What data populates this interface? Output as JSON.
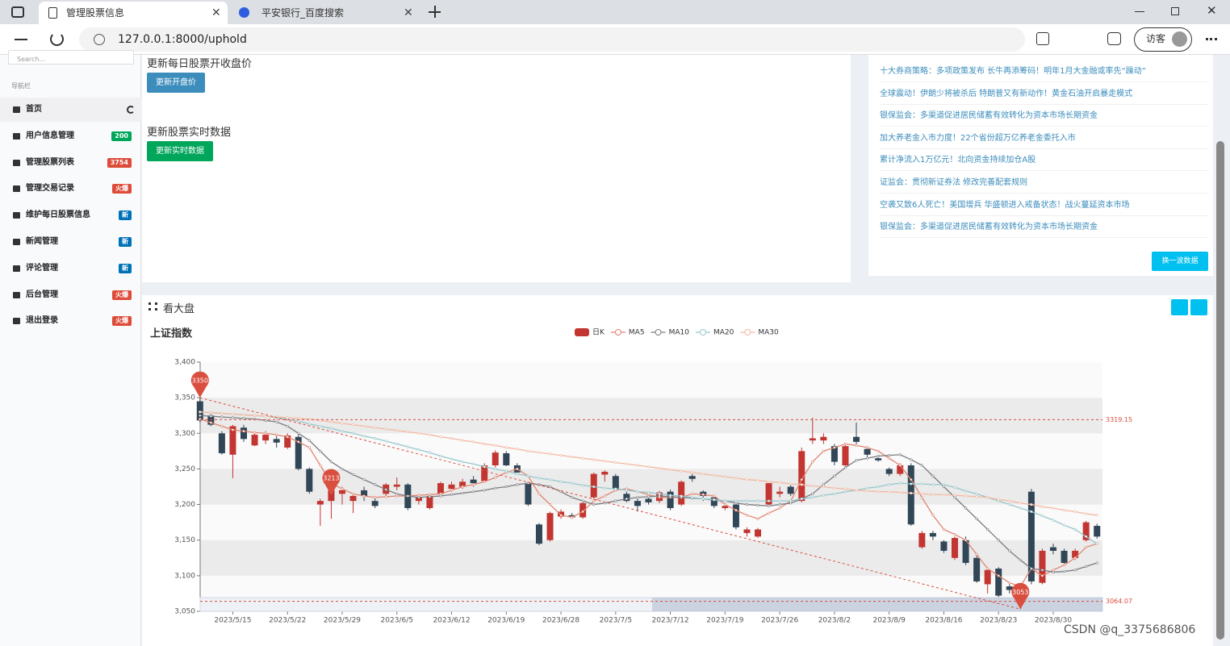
{
  "browser": {
    "tabs": [
      "管理股票信息",
      "平安银行_百度搜索"
    ],
    "url": "127.0.0.1:8000/uphold",
    "profile": "访客"
  },
  "sidebar": {
    "search_placeholder": "Search...",
    "nav_label": "导航栏",
    "items": [
      {
        "label": "首页"
      },
      {
        "label": "用户信息管理",
        "badge": "200",
        "badge_color": "#00a65a"
      },
      {
        "label": "管理股票列表",
        "badge": "3754",
        "badge_color": "#dd4b39"
      },
      {
        "label": "管理交易记录",
        "badge": "火爆",
        "badge_color": "#dd4b39"
      },
      {
        "label": "维护每日股票信息",
        "badge": "新",
        "badge_color": "#0073b7"
      },
      {
        "label": "新闻管理",
        "badge": "新",
        "badge_color": "#0073b7"
      },
      {
        "label": "评论管理",
        "badge": "新",
        "badge_color": "#0073b7"
      },
      {
        "label": "后台管理",
        "badge": "火爆",
        "badge_color": "#dd4b39"
      },
      {
        "label": "退出登录",
        "badge": "火爆",
        "badge_color": "#dd4b39"
      }
    ]
  },
  "update_panel": {
    "heading1": "更新每日股票开收盘价",
    "button1": "更新开盘价",
    "heading2": "更新股票实时数据",
    "button2": "更新实时数据"
  },
  "news": {
    "items": [
      "十大券商策略：多项政策发布 长牛再添筹码！明年1月大金融或率先“躁动”",
      "全球震动！伊朗少将被杀后 特朗普又有新动作！黄金石油开启暴走模式",
      "银保监会：多渠道促进居民储蓄有效转化为资本市场长期资金",
      "加大养老金入市力度！22个省份超万亿养老金委托入市",
      "累计净流入1万亿元！北向资金持续加仓A股",
      "证监会：贯彻新证券法 修改完善配套规则",
      "空袭又致6人死亡！美国增兵 华盛顿进入戒备状态！战火蔓延资本市场",
      "银保监会：多渠道促进居民储蓄有效转化为资本市场长期资金"
    ],
    "button": "换一波数据"
  },
  "market_panel": {
    "title": "看大盘"
  },
  "chart_data": {
    "type": "candlestick",
    "title": "上证指数",
    "categories": [
      null,
      null,
      null,
      "2023/5/15",
      null,
      null,
      null,
      null,
      "2023/5/22",
      null,
      null,
      null,
      null,
      "2023/5/29",
      null,
      null,
      null,
      null,
      "2023/6/5",
      null,
      null,
      null,
      null,
      "2023/6/12",
      null,
      null,
      null,
      null,
      "2023/6/19",
      null,
      null,
      null,
      null,
      "2023/6/28",
      null,
      null,
      null,
      null,
      "2023/7/5",
      null,
      null,
      null,
      null,
      "2023/7/12",
      null,
      null,
      null,
      null,
      "2023/7/19",
      null,
      null,
      null,
      null,
      "2023/7/26",
      null,
      null,
      null,
      null,
      "2023/8/2",
      null,
      null,
      null,
      null,
      "2023/8/9",
      null,
      null,
      null,
      null,
      "2023/8/16",
      null,
      null,
      null,
      null,
      "2023/8/23",
      null,
      null,
      null,
      null,
      "2023/8/30",
      null,
      null,
      null,
      null
    ],
    "series": [
      {
        "name": "日K",
        "type": "candlestick",
        "color": "#c23531",
        "color_down": "#314656",
        "values": [
          [
            3345,
            3318,
            3315,
            3350
          ],
          [
            3325,
            3312,
            3310,
            3328
          ],
          [
            3300,
            3272,
            3270,
            3303
          ],
          [
            3270,
            3310,
            3237,
            3312
          ],
          [
            3308,
            3292,
            3288,
            3312
          ],
          [
            3283,
            3298,
            3282,
            3300
          ],
          [
            3290,
            3298,
            3285,
            3303
          ],
          [
            3292,
            3287,
            3280,
            3298
          ],
          [
            3280,
            3297,
            3278,
            3300
          ],
          [
            3295,
            3250,
            3248,
            3299
          ],
          [
            3250,
            3218,
            3215,
            3252
          ],
          [
            3200,
            3205,
            3170,
            3208
          ],
          [
            3205,
            3220,
            3180,
            3222
          ],
          [
            3215,
            3220,
            3200,
            3225
          ],
          [
            3205,
            3212,
            3188,
            3215
          ],
          [
            3220,
            3212,
            3205,
            3225
          ],
          [
            3205,
            3198,
            3195,
            3210
          ],
          [
            3215,
            3228,
            3212,
            3230
          ],
          [
            3225,
            3228,
            3220,
            3238
          ],
          [
            3228,
            3195,
            3192,
            3230
          ],
          [
            3205,
            3210,
            3200,
            3215
          ],
          [
            3195,
            3212,
            3193,
            3215
          ],
          [
            3215,
            3230,
            3212,
            3232
          ],
          [
            3222,
            3228,
            3218,
            3232
          ],
          [
            3225,
            3232,
            3222,
            3236
          ],
          [
            3235,
            3230,
            3225,
            3240
          ],
          [
            3233,
            3255,
            3232,
            3258
          ],
          [
            3255,
            3273,
            3252,
            3276
          ],
          [
            3272,
            3255,
            3254,
            3275
          ],
          [
            3255,
            3245,
            3242,
            3258
          ],
          [
            3230,
            3200,
            3198,
            3232
          ],
          [
            3172,
            3145,
            3143,
            3174
          ],
          [
            3150,
            3188,
            3148,
            3190
          ],
          [
            3183,
            3190,
            3180,
            3193
          ],
          [
            3185,
            3182,
            3180,
            3188
          ],
          [
            3182,
            3202,
            3180,
            3205
          ],
          [
            3210,
            3243,
            3208,
            3245
          ],
          [
            3242,
            3246,
            3232,
            3248
          ],
          [
            3240,
            3222,
            3220,
            3243
          ],
          [
            3215,
            3205,
            3203,
            3218
          ],
          [
            3205,
            3198,
            3190,
            3208
          ],
          [
            3208,
            3203,
            3200,
            3210
          ],
          [
            3205,
            3217,
            3202,
            3219
          ],
          [
            3218,
            3195,
            3192,
            3221
          ],
          [
            3200,
            3232,
            3198,
            3234
          ],
          [
            3240,
            3236,
            3232,
            3245
          ],
          [
            3218,
            3212,
            3205,
            3220
          ],
          [
            3210,
            3198,
            3195,
            3213
          ],
          [
            3195,
            3198,
            3192,
            3200
          ],
          [
            3200,
            3168,
            3165,
            3202
          ],
          [
            3160,
            3165,
            3155,
            3168
          ],
          [
            3155,
            3165,
            3153,
            3167
          ],
          [
            3200,
            3230,
            3198,
            3232
          ],
          [
            3215,
            3218,
            3210,
            3225
          ],
          [
            3225,
            3215,
            3212,
            3228
          ],
          [
            3205,
            3275,
            3203,
            3280
          ],
          [
            3290,
            3293,
            3285,
            3322
          ],
          [
            3290,
            3295,
            3285,
            3300
          ],
          [
            3282,
            3260,
            3255,
            3285
          ],
          [
            3255,
            3282,
            3253,
            3285
          ],
          [
            3295,
            3288,
            3283,
            3315
          ],
          [
            3278,
            3270,
            3266,
            3282
          ],
          [
            3265,
            3262,
            3260,
            3270
          ],
          [
            3250,
            3243,
            3240,
            3252
          ],
          [
            3243,
            3255,
            3240,
            3258
          ],
          [
            3255,
            3172,
            3170,
            3258
          ],
          [
            3140,
            3160,
            3138,
            3163
          ],
          [
            3160,
            3155,
            3150,
            3163
          ],
          [
            3148,
            3135,
            3132,
            3150
          ],
          [
            3125,
            3153,
            3122,
            3155
          ],
          [
            3150,
            3118,
            3115,
            3155
          ],
          [
            3125,
            3092,
            3090,
            3128
          ],
          [
            3088,
            3108,
            3075,
            3110
          ],
          [
            3110,
            3072,
            3070,
            3112
          ],
          [
            3085,
            3080,
            3075,
            3088
          ],
          [
            3070,
            3075,
            3053,
            3078
          ],
          [
            3218,
            3092,
            3088,
            3222
          ],
          [
            3090,
            3135,
            3088,
            3138
          ],
          [
            3140,
            3135,
            3130,
            3145
          ],
          [
            3135,
            3118,
            3115,
            3138
          ],
          [
            3125,
            3135,
            3122,
            3138
          ],
          [
            3150,
            3175,
            3148,
            3177
          ],
          [
            3170,
            3155,
            3152,
            3173
          ]
        ]
      },
      {
        "name": "MA5",
        "type": "line",
        "color": "#e08570",
        "values": [
          3320,
          3315,
          3310,
          3305,
          3303,
          3301,
          3300,
          3298,
          3295,
          3288,
          3280,
          3255,
          3230,
          3222,
          3215,
          3212,
          3210,
          3211,
          3212,
          3212,
          3213,
          3214,
          3215,
          3220,
          3225,
          3228,
          3232,
          3238,
          3245,
          3250,
          3240,
          3215,
          3200,
          3185,
          3182,
          3190,
          3205,
          3212,
          3220,
          3222,
          3218,
          3214,
          3210,
          3210,
          3210,
          3215,
          3214,
          3212,
          3200,
          3192,
          3185,
          3180,
          3188,
          3195,
          3205,
          3235,
          3260,
          3275,
          3280,
          3285,
          3283,
          3280,
          3275,
          3265,
          3255,
          3235,
          3210,
          3185,
          3165,
          3158,
          3150,
          3130,
          3110,
          3100,
          3090,
          3085,
          3110,
          3100,
          3108,
          3115,
          3125,
          3140,
          3145
        ]
      },
      {
        "name": "MA10",
        "type": "line",
        "color": "#7a7c80",
        "values": [
          3325,
          3324,
          3323,
          3322,
          3321,
          3320,
          3318,
          3316,
          3310,
          3300,
          3290,
          3275,
          3260,
          3250,
          3242,
          3235,
          3228,
          3221,
          3215,
          3212,
          3210,
          3211,
          3212,
          3214,
          3216,
          3218,
          3220,
          3223,
          3225,
          3228,
          3230,
          3228,
          3225,
          3218,
          3210,
          3205,
          3200,
          3202,
          3205,
          3208,
          3210,
          3211,
          3212,
          3211,
          3210,
          3209,
          3208,
          3206,
          3205,
          3202,
          3200,
          3199,
          3198,
          3200,
          3202,
          3208,
          3215,
          3228,
          3240,
          3252,
          3262,
          3265,
          3268,
          3269,
          3270,
          3263,
          3255,
          3240,
          3225,
          3210,
          3195,
          3180,
          3165,
          3150,
          3135,
          3122,
          3110,
          3108,
          3105,
          3106,
          3108,
          3113,
          3118
        ]
      },
      {
        "name": "MA20",
        "type": "line",
        "color": "#96c6cc",
        "values": [
          3330,
          3329,
          3328,
          3327,
          3326,
          3325,
          3324,
          3322,
          3320,
          3317,
          3313,
          3310,
          3307,
          3303,
          3300,
          3296,
          3293,
          3289,
          3285,
          3281,
          3277,
          3273,
          3268,
          3264,
          3260,
          3257,
          3253,
          3250,
          3247,
          3243,
          3240,
          3237,
          3235,
          3232,
          3230,
          3227,
          3225,
          3223,
          3222,
          3220,
          3218,
          3217,
          3215,
          3213,
          3212,
          3210,
          3208,
          3207,
          3205,
          3205,
          3205,
          3205,
          3205,
          3205,
          3205,
          3208,
          3210,
          3213,
          3215,
          3218,
          3220,
          3223,
          3225,
          3228,
          3230,
          3229,
          3229,
          3228,
          3228,
          3224,
          3219,
          3215,
          3210,
          3205,
          3200,
          3195,
          3190,
          3184,
          3178,
          3171,
          3165,
          3155,
          3145
        ]
      },
      {
        "name": "MA30",
        "type": "line",
        "color": "#f2b8a2",
        "values": [
          3330,
          3329,
          3328,
          3327,
          3326,
          3325,
          3324,
          3323,
          3322,
          3321,
          3320,
          3318,
          3316,
          3314,
          3312,
          3310,
          3308,
          3306,
          3304,
          3302,
          3300,
          3298,
          3295,
          3293,
          3290,
          3288,
          3285,
          3283,
          3280,
          3278,
          3275,
          3273,
          3271,
          3269,
          3267,
          3265,
          3263,
          3261,
          3259,
          3257,
          3255,
          3253,
          3251,
          3249,
          3247,
          3245,
          3243,
          3241,
          3239,
          3237,
          3235,
          3234,
          3232,
          3231,
          3229,
          3228,
          3226,
          3225,
          3223,
          3222,
          3220,
          3219,
          3218,
          3218,
          3217,
          3216,
          3215,
          3214,
          3214,
          3213,
          3212,
          3211,
          3210,
          3207,
          3205,
          3202,
          3200,
          3197,
          3195,
          3192,
          3190,
          3187,
          3185
        ]
      }
    ],
    "ylim": [
      3050,
      3400
    ],
    "yticks": [
      {
        "value": 3050,
        "label": "3,050"
      },
      {
        "value": 3100,
        "label": "3,100"
      },
      {
        "value": 3150,
        "label": "3,150"
      },
      {
        "value": 3200,
        "label": "3,200"
      },
      {
        "value": 3250,
        "label": "3,250"
      },
      {
        "value": 3300,
        "label": "3,300"
      },
      {
        "value": 3350,
        "label": "3,350"
      },
      {
        "value": 3400,
        "label": "3,400"
      }
    ],
    "mark_points": [
      {
        "at": 0,
        "value": 3350
      },
      {
        "at": 12,
        "value": 3213
      },
      {
        "at": 75,
        "value": 3053
      }
    ],
    "mark_lines": [
      {
        "value": 3319.15
      },
      {
        "value": 3064.07
      }
    ],
    "mark_color": "#d94e3f",
    "split_area": true
  },
  "watermark": "CSDN @q_3375686806"
}
